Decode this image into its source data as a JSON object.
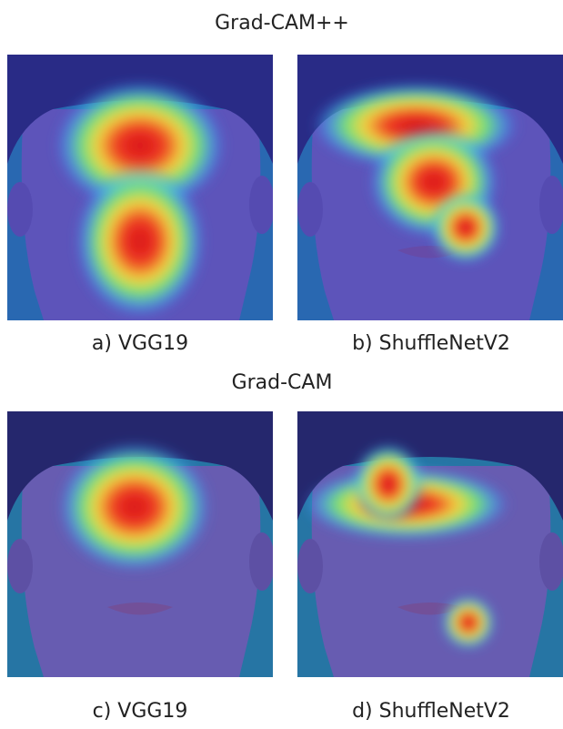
{
  "figure": {
    "sections": [
      {
        "title": "Grad-CAM++",
        "panels": [
          {
            "label": "a) VGG19"
          },
          {
            "label": "b) ShuffleNetV2"
          }
        ]
      },
      {
        "title": "Grad-CAM",
        "panels": [
          {
            "label": "c) VGG19"
          },
          {
            "label": "d) ShuffleNetV2"
          }
        ]
      }
    ]
  }
}
